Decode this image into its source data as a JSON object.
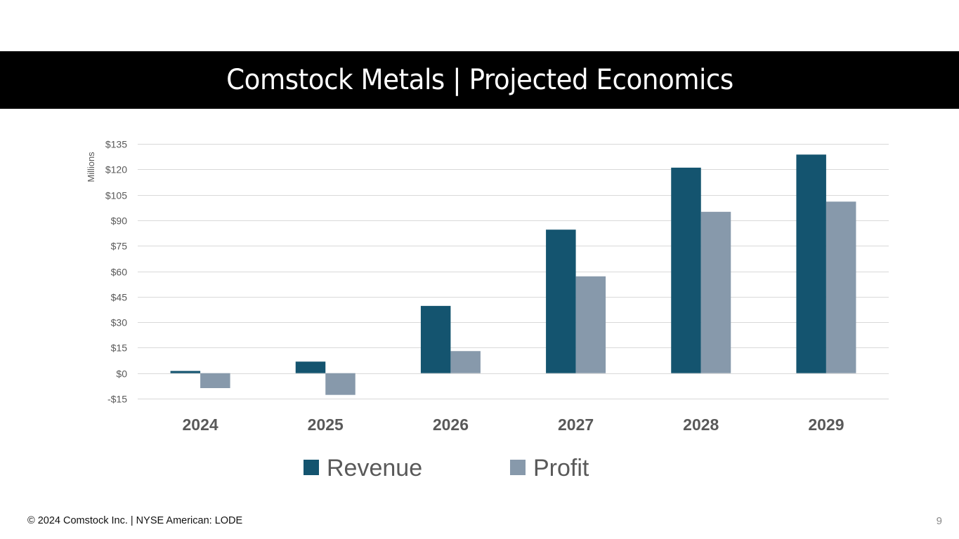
{
  "slide": {
    "title": "Comstock Metals | Projected Economics",
    "footer": "© 2024 Comstock Inc. | NYSE American: LODE",
    "page_number": "9"
  },
  "colors": {
    "revenue": "#14546f",
    "profit": "#8799ab",
    "gridline": "#d9d9d9",
    "tick_text": "#595959",
    "title_bar": "#000000"
  },
  "chart_data": {
    "type": "bar",
    "title": "",
    "xlabel": "",
    "ylabel": "Millions",
    "categories": [
      "2024",
      "2025",
      "2026",
      "2027",
      "2028",
      "2029"
    ],
    "series": [
      {
        "name": "Revenue",
        "values": [
          1.3,
          6.8,
          39.6,
          84.5,
          121.0,
          128.7
        ]
      },
      {
        "name": "Profit",
        "values": [
          -8.8,
          -12.8,
          13.0,
          57.0,
          95.0,
          101.0
        ]
      }
    ],
    "ylim": [
      -15,
      135
    ],
    "yticks": [
      -15,
      0,
      15,
      30,
      45,
      60,
      75,
      90,
      105,
      120,
      135
    ],
    "ytick_labels": [
      "-$15",
      "$0",
      "$15",
      "$30",
      "$45",
      "$60",
      "$75",
      "$90",
      "$105",
      "$120",
      "$135"
    ],
    "grid": true,
    "legend": "bottom-center"
  }
}
